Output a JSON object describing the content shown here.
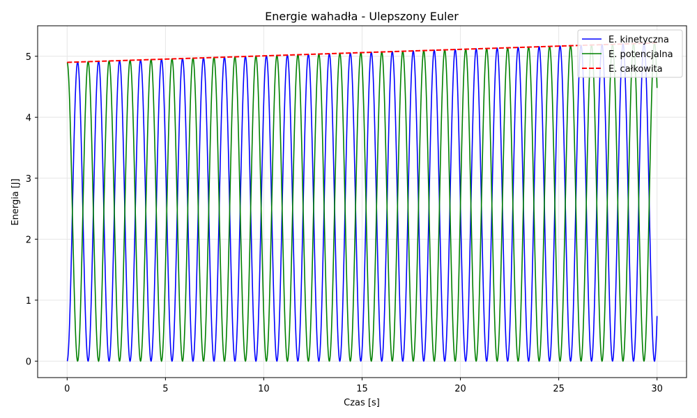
{
  "chart_data": {
    "type": "line",
    "title": "Energie wahadła - Ulepszony Euler",
    "xlabel": "Czas [s]",
    "ylabel": "Energia [J]",
    "xlim": [
      -1.5,
      31.5
    ],
    "ylim": [
      -0.27,
      5.5
    ],
    "xticks": [
      0,
      5,
      10,
      15,
      20,
      25,
      30
    ],
    "yticks": [
      0,
      1,
      2,
      3,
      4,
      5
    ],
    "grid": true,
    "legend_position": "top-right",
    "oscillation": {
      "t_start": 0,
      "t_end": 30,
      "cycles": 28,
      "E_start": 4.9,
      "E_end": 5.22,
      "kinetic_end": 0.74,
      "potential_end": 4.5
    },
    "series": [
      {
        "name": "E. kinetyczna",
        "color": "#0000ff",
        "style": "solid",
        "kind": "kinetic"
      },
      {
        "name": "E. potencjalna",
        "color": "#008000",
        "style": "solid",
        "kind": "potential"
      },
      {
        "name": "E. całkowita",
        "color": "#ff0000",
        "style": "dashed",
        "kind": "total"
      }
    ]
  }
}
